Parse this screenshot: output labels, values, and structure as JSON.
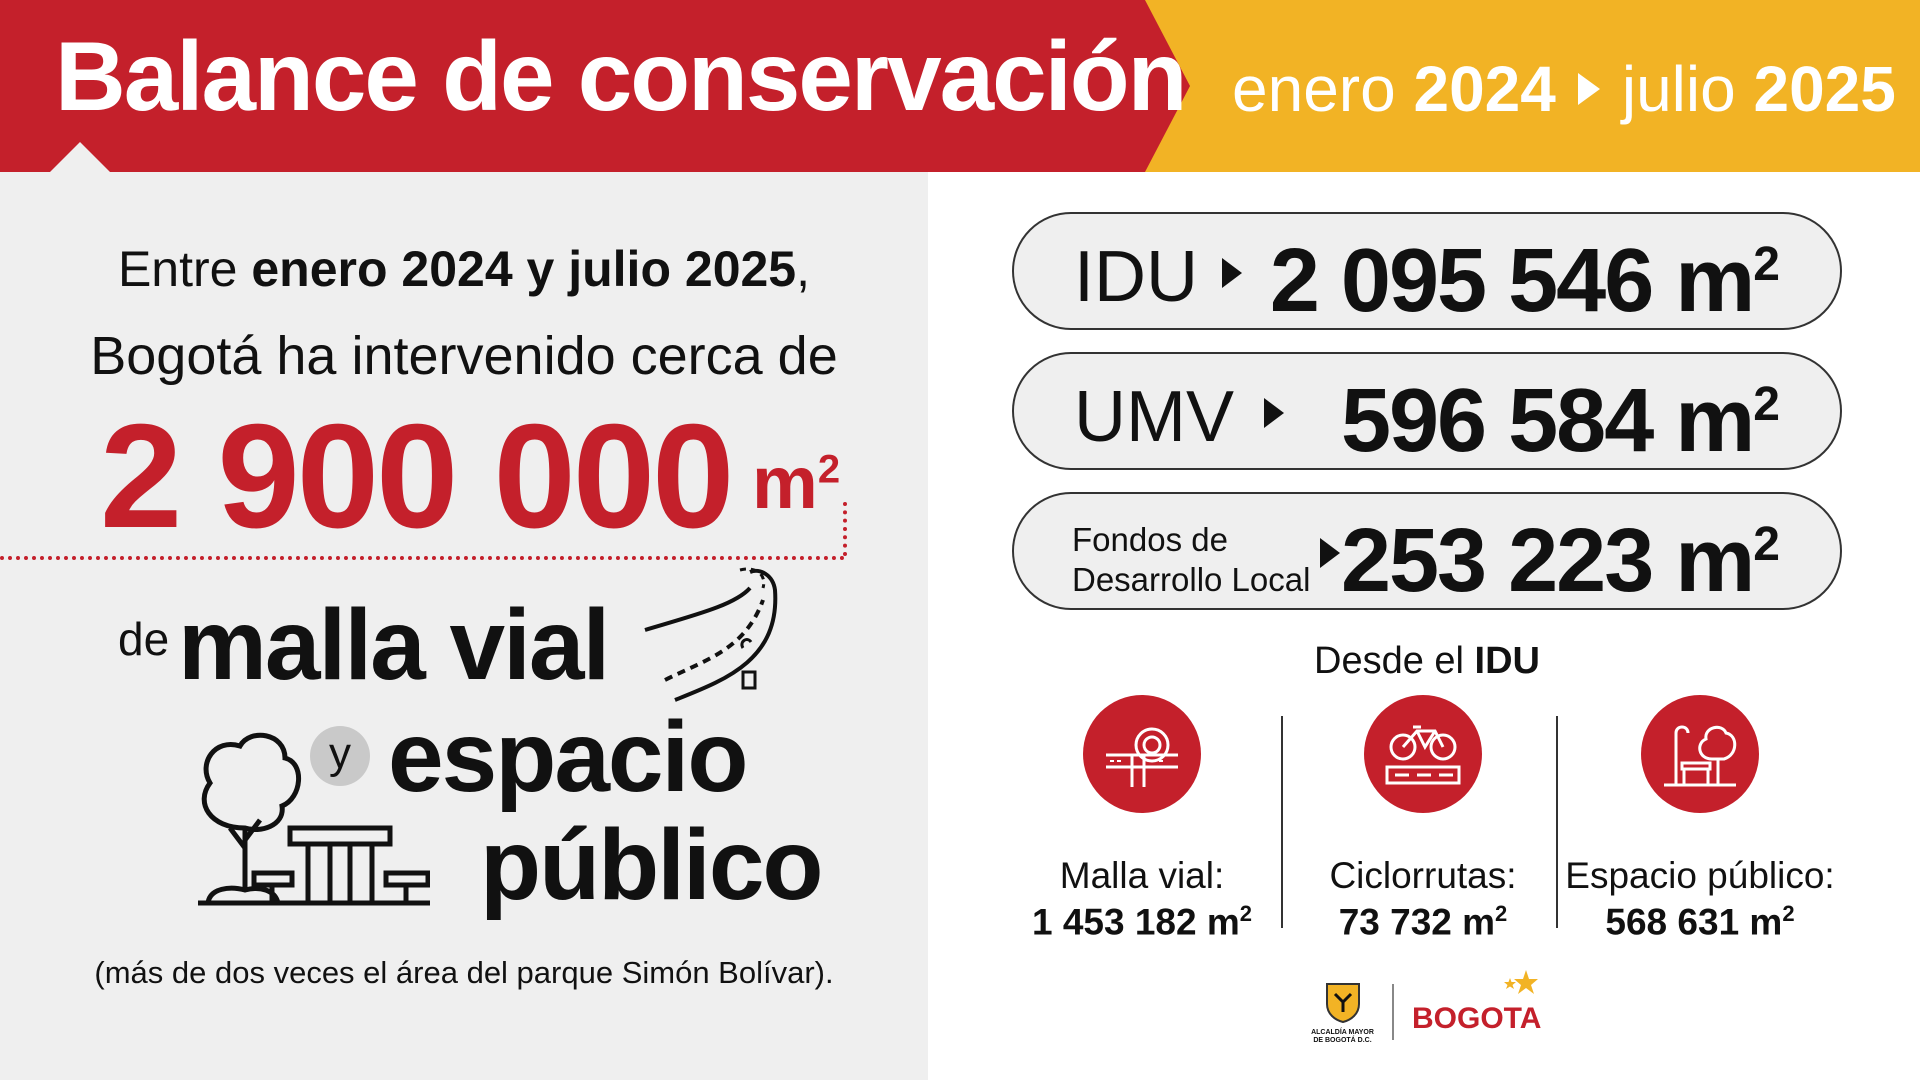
{
  "header": {
    "title": "Balance de conservación",
    "dates": {
      "from_month": "enero",
      "from_year": "2024",
      "to_month": "julio",
      "to_year": "2025"
    }
  },
  "intro": {
    "line1_start": "Entre ",
    "line1_bold": "enero 2024 y julio 2025",
    "line1_end": ",",
    "line2": "Bogotá ha intervenido cerca de"
  },
  "big_number": {
    "value": "2 900 000",
    "unit": "m",
    "exp": "2"
  },
  "subject": {
    "de": "de",
    "malla": "malla vial",
    "y": "y",
    "espacio": "espacio",
    "publico": "público"
  },
  "footnote": "(más de dos veces el área del parque Simón Bolívar).",
  "pills": [
    {
      "label": "IDU",
      "value": "2 095 546 m",
      "exp": "2"
    },
    {
      "label": "UMV",
      "value": "596 584 m",
      "exp": "2"
    },
    {
      "label_line1": "Fondos de",
      "label_line2": "Desarrollo Local",
      "value": "253 223 m",
      "exp": "2"
    }
  ],
  "desde": {
    "prefix": "Desde el ",
    "bold": "IDU"
  },
  "stats": [
    {
      "icon": "road-interchange-icon",
      "label": "Malla vial:",
      "value": "1 453 182 m",
      "exp": "2"
    },
    {
      "icon": "bicycle-icon",
      "label": "Ciclorrutas:",
      "value": "73 732 m",
      "exp": "2"
    },
    {
      "icon": "park-bench-icon",
      "label": "Espacio público:",
      "value": "568 631 m",
      "exp": "2"
    }
  ],
  "logos": {
    "alcaldia_line1": "ALCALDÍA MAYOR",
    "alcaldia_line2": "DE BOGOTÁ D.C.",
    "bogota": "BOGOTA"
  },
  "colors": {
    "red": "#c4202b",
    "yellow": "#f2b325",
    "panel": "#efefef"
  }
}
